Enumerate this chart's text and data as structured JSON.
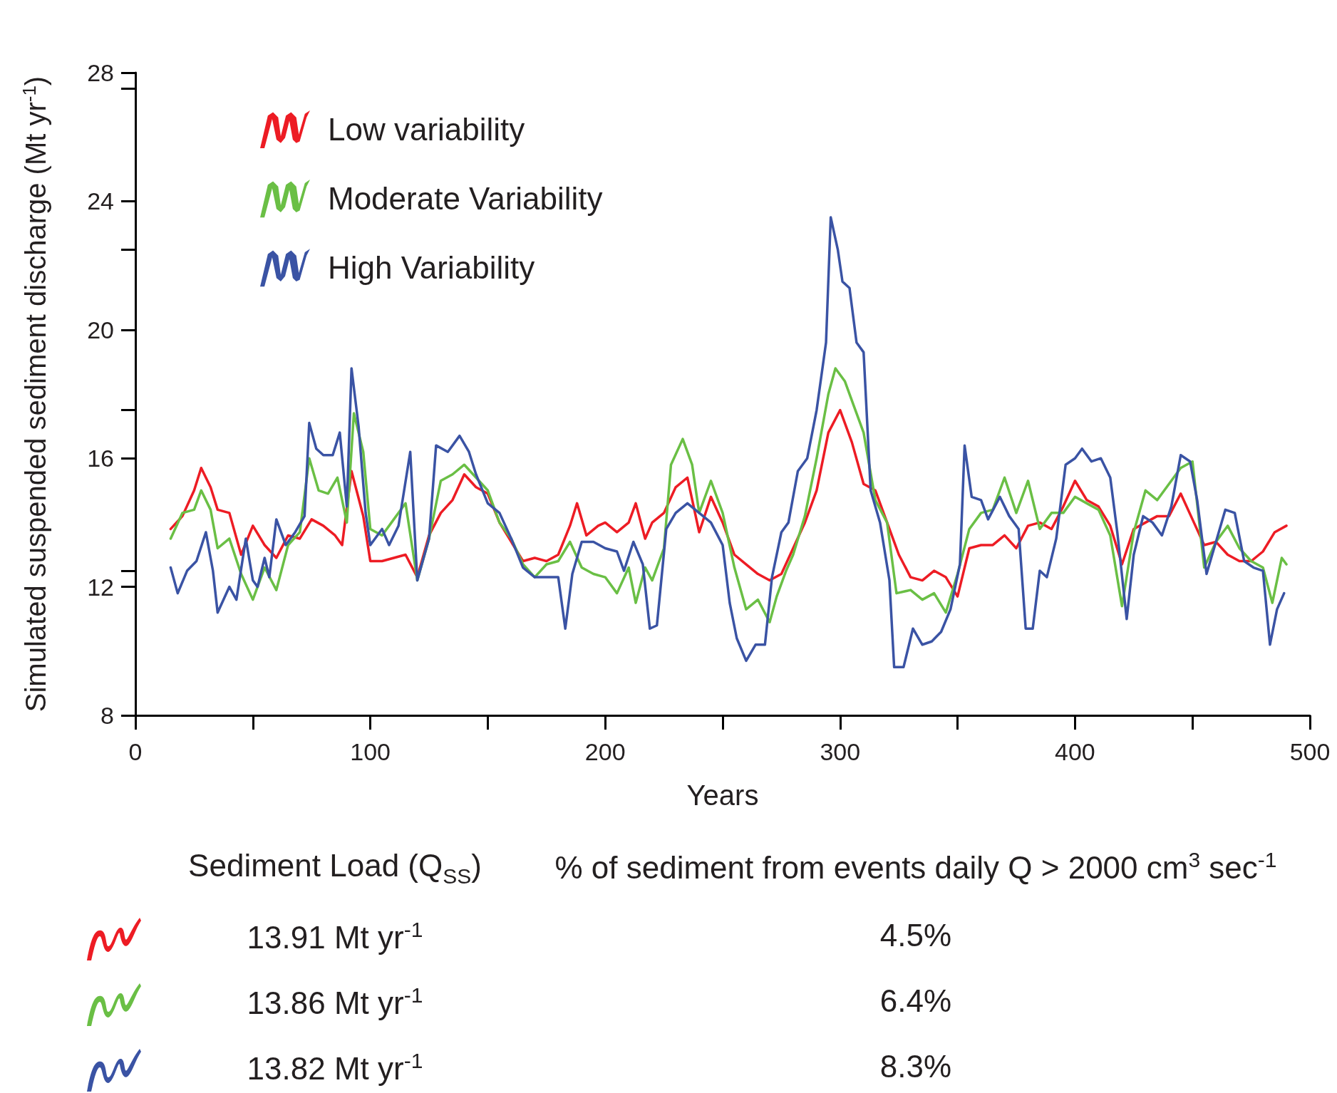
{
  "chart_data": {
    "type": "line",
    "xlabel": "Years",
    "ylabel": "Simulated suspended sediment discharge (Mt yr$^{-1}$)",
    "xlim": [
      0,
      500
    ],
    "xticks": [
      0,
      100,
      200,
      300,
      400,
      500
    ],
    "ylim": [
      8,
      28
    ],
    "yticks": [
      8,
      12,
      16,
      20,
      24,
      28
    ],
    "legend": "top left",
    "marker": "none",
    "line_style": "solid",
    "series": [
      {
        "name": "Low variability",
        "color": "#ed1c24",
        "x": [
          15,
          20,
          25,
          28,
          32,
          35,
          40,
          45,
          50,
          55,
          60,
          65,
          70,
          75,
          80,
          85,
          88,
          92,
          97,
          100,
          105,
          110,
          115,
          120,
          125,
          130,
          135,
          140,
          145,
          150,
          155,
          160,
          165,
          170,
          175,
          180,
          185,
          188,
          192,
          197,
          200,
          205,
          210,
          213,
          217,
          220,
          225,
          230,
          235,
          240,
          245,
          250,
          255,
          260,
          265,
          270,
          275,
          280,
          285,
          290,
          295,
          300,
          305,
          310,
          315,
          320,
          325,
          330,
          335,
          340,
          345,
          350,
          355,
          360,
          365,
          370,
          375,
          380,
          385,
          390,
          395,
          400,
          405,
          410,
          415,
          420,
          425,
          430,
          435,
          440,
          445,
          450,
          455,
          460,
          465,
          470,
          475,
          480,
          485,
          490
        ],
        "values": [
          13.8,
          14.2,
          15.0,
          15.7,
          15.1,
          14.4,
          14.3,
          13.0,
          13.9,
          13.3,
          12.9,
          13.6,
          13.5,
          14.1,
          13.9,
          13.6,
          13.3,
          15.6,
          14.2,
          12.8,
          12.8,
          12.9,
          13.0,
          12.3,
          13.6,
          14.3,
          14.7,
          15.5,
          15.1,
          14.9,
          14.0,
          13.4,
          12.8,
          12.9,
          12.8,
          13.0,
          13.9,
          14.6,
          13.6,
          13.9,
          14.0,
          13.7,
          14.0,
          14.6,
          13.5,
          14.0,
          14.3,
          15.1,
          15.4,
          13.7,
          14.8,
          14.0,
          13.0,
          12.7,
          12.4,
          12.2,
          12.4,
          13.2,
          14.0,
          15.0,
          16.8,
          17.5,
          16.5,
          15.2,
          15.0,
          14.0,
          13.0,
          12.3,
          12.2,
          12.5,
          12.3,
          11.7,
          13.2,
          13.3,
          13.3,
          13.6,
          13.2,
          13.9,
          14.0,
          13.8,
          14.5,
          15.3,
          14.7,
          14.5,
          13.9,
          12.7,
          13.8,
          14.0,
          14.2,
          14.2,
          14.9,
          14.1,
          13.3,
          13.4,
          13.0,
          12.8,
          12.8,
          13.1,
          13.7,
          13.9
        ]
      },
      {
        "name": "Moderate Variability",
        "color": "#6abf45",
        "x": [
          15,
          20,
          25,
          28,
          32,
          35,
          40,
          45,
          50,
          55,
          60,
          65,
          70,
          74,
          78,
          82,
          86,
          90,
          93,
          97,
          100,
          105,
          110,
          115,
          120,
          125,
          130,
          135,
          140,
          145,
          150,
          155,
          160,
          165,
          170,
          175,
          180,
          185,
          190,
          195,
          200,
          205,
          210,
          213,
          217,
          220,
          225,
          228,
          233,
          237,
          240,
          245,
          250,
          255,
          260,
          265,
          270,
          273,
          277,
          280,
          285,
          290,
          295,
          298,
          302,
          306,
          310,
          315,
          320,
          324,
          330,
          335,
          340,
          345,
          350,
          355,
          360,
          365,
          370,
          375,
          380,
          385,
          390,
          395,
          400,
          405,
          410,
          415,
          420,
          425,
          430,
          435,
          440,
          445,
          450,
          455,
          460,
          465,
          470,
          475,
          480,
          484,
          488,
          490
        ],
        "values": [
          13.5,
          14.3,
          14.4,
          15.0,
          14.4,
          13.2,
          13.5,
          12.4,
          11.6,
          12.6,
          11.9,
          13.3,
          13.7,
          16.0,
          15.0,
          14.9,
          15.4,
          14.0,
          17.4,
          16.2,
          13.8,
          13.6,
          14.1,
          14.6,
          12.2,
          13.5,
          15.3,
          15.5,
          15.8,
          15.4,
          15.0,
          14.0,
          13.5,
          12.7,
          12.3,
          12.7,
          12.8,
          13.4,
          12.6,
          12.4,
          12.3,
          11.8,
          12.6,
          11.5,
          12.6,
          12.2,
          13.2,
          15.8,
          16.6,
          15.8,
          14.3,
          15.3,
          14.3,
          12.6,
          11.3,
          11.6,
          10.9,
          11.7,
          12.5,
          13.0,
          14.2,
          16.0,
          18.0,
          18.8,
          18.4,
          17.6,
          16.8,
          14.7,
          14.0,
          11.8,
          11.9,
          11.6,
          11.8,
          11.2,
          12.4,
          13.8,
          14.3,
          14.4,
          15.4,
          14.3,
          15.3,
          13.8,
          14.3,
          14.3,
          14.8,
          14.6,
          14.4,
          13.6,
          11.4,
          13.7,
          15.0,
          14.7,
          15.2,
          15.7,
          15.9,
          12.6,
          13.4,
          13.9,
          13.2,
          12.8,
          12.6,
          11.5,
          12.9,
          12.7
        ]
      },
      {
        "name": "High Variability",
        "color": "#3a53a4",
        "x": [
          15,
          18,
          22,
          26,
          30,
          33,
          35,
          40,
          43,
          47,
          50,
          52,
          55,
          57,
          60,
          64,
          68,
          72,
          74,
          77,
          80,
          84,
          87,
          90,
          92,
          95,
          98,
          100,
          105,
          108,
          112,
          117,
          120,
          125,
          128,
          133,
          138,
          142,
          145,
          150,
          155,
          160,
          165,
          170,
          175,
          180,
          183,
          186,
          190,
          195,
          200,
          205,
          208,
          212,
          216,
          219,
          222,
          226,
          230,
          235,
          240,
          245,
          250,
          253,
          256,
          260,
          264,
          268,
          271,
          275,
          278,
          282,
          286,
          290,
          294,
          296,
          299,
          301,
          304,
          307,
          310,
          313,
          317,
          321,
          323,
          327,
          331,
          335,
          339,
          343,
          347,
          351,
          353,
          356,
          360,
          363,
          368,
          372,
          376,
          379,
          382,
          385,
          388,
          392,
          396,
          400,
          403,
          407,
          411,
          415,
          418,
          422,
          425,
          429,
          433,
          437,
          441,
          445,
          449,
          452,
          456,
          460,
          464,
          468,
          472,
          476,
          480,
          483,
          486,
          489
        ],
        "values": [
          12.6,
          11.8,
          12.5,
          12.8,
          13.7,
          12.5,
          11.2,
          12.0,
          11.6,
          13.5,
          12.2,
          12.0,
          12.9,
          12.3,
          14.1,
          13.3,
          13.7,
          14.2,
          17.1,
          16.3,
          16.1,
          16.1,
          16.8,
          14.5,
          18.8,
          17.0,
          14.3,
          13.3,
          13.8,
          13.3,
          13.9,
          16.2,
          12.2,
          13.5,
          16.4,
          16.2,
          16.7,
          16.2,
          15.5,
          14.6,
          14.3,
          13.5,
          12.6,
          12.3,
          12.3,
          12.3,
          10.7,
          12.4,
          13.4,
          13.4,
          13.2,
          13.1,
          12.5,
          13.4,
          12.7,
          10.7,
          10.8,
          13.8,
          14.3,
          14.6,
          14.3,
          14.0,
          13.3,
          11.5,
          10.4,
          9.7,
          10.2,
          10.2,
          12.3,
          13.7,
          14.0,
          15.6,
          16.0,
          17.5,
          19.6,
          23.5,
          22.5,
          21.5,
          21.3,
          19.6,
          19.3,
          15.0,
          14.0,
          12.2,
          9.5,
          9.5,
          10.7,
          10.2,
          10.3,
          10.6,
          11.3,
          12.7,
          16.4,
          14.8,
          14.7,
          14.1,
          14.8,
          14.2,
          13.8,
          10.7,
          10.7,
          12.5,
          12.3,
          13.5,
          15.8,
          16.0,
          16.3,
          15.9,
          16.0,
          15.4,
          13.7,
          11.0,
          13.0,
          14.2,
          14.0,
          13.6,
          14.5,
          16.1,
          15.9,
          14.7,
          12.4,
          13.4,
          14.4,
          14.3,
          12.8,
          12.6,
          12.5,
          10.2,
          11.3,
          11.8
        ]
      }
    ],
    "annotations": [
      "Sediment Load (Q$_{SS}$)",
      "% of sediment from events daily Q > 2000 cm$^{3}$ sec$^{-1}$",
      "13.91 Mt yr$^{-1}$",
      "4.5%",
      "13.86 Mt yr$^{-1}$",
      "6.4%",
      "13.82 Mt yr$^{-1}$",
      "8.3%"
    ]
  }
}
